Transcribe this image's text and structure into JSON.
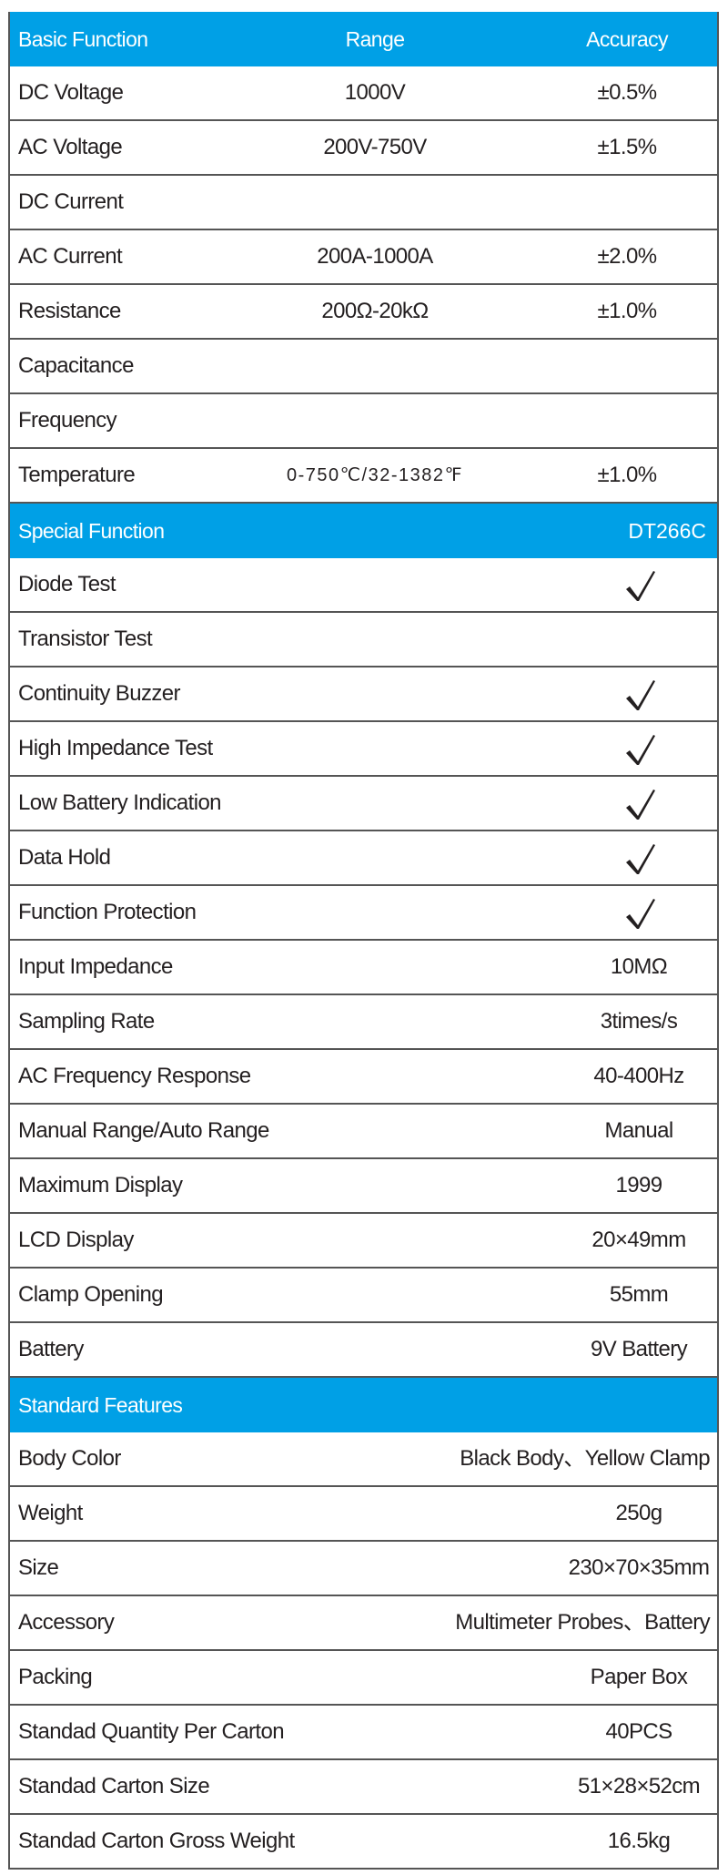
{
  "theme": {
    "header_color": "#00a0e6",
    "border_color": "#555555",
    "text_color": "#231f20"
  },
  "basic": {
    "header": {
      "label": "Basic Function",
      "range": "Range",
      "accuracy": "Accuracy"
    },
    "rows": [
      {
        "label": "DC Voltage",
        "range": "1000V",
        "accuracy": "±0.5%"
      },
      {
        "label": "AC Voltage",
        "range": "200V-750V",
        "accuracy": "±1.5%"
      },
      {
        "label": "DC Current",
        "range": "",
        "accuracy": ""
      },
      {
        "label": "AC Current",
        "range": "200A-1000A",
        "accuracy": "±2.0%"
      },
      {
        "label": "Resistance",
        "range": "200Ω-20kΩ",
        "accuracy": "±1.0%"
      },
      {
        "label": "Capacitance",
        "range": "",
        "accuracy": ""
      },
      {
        "label": "Frequency",
        "range": "",
        "accuracy": ""
      },
      {
        "label": "Temperature",
        "range": "0-750℃/32-1382℉",
        "accuracy": "±1.0%"
      }
    ]
  },
  "special": {
    "header": {
      "label": "Special Function",
      "model": "DT266C"
    },
    "rows": [
      {
        "label": "Diode Test",
        "check": true
      },
      {
        "label": "Transistor Test",
        "check": false
      },
      {
        "label": "Continuity Buzzer",
        "check": true
      },
      {
        "label": "High Impedance Test",
        "check": true
      },
      {
        "label": "Low Battery Indication",
        "check": true
      },
      {
        "label": "Data Hold",
        "check": true
      },
      {
        "label": "Function Protection",
        "check": true
      },
      {
        "label": "Input Impedance",
        "value": "10MΩ"
      },
      {
        "label": "Sampling Rate",
        "value": "3times/s"
      },
      {
        "label": "AC Frequency Response",
        "value": "40-400Hz"
      },
      {
        "label": "Manual Range/Auto Range",
        "value": "Manual"
      },
      {
        "label": "Maximum Display",
        "value": "1999"
      },
      {
        "label": "LCD Display",
        "value": "20×49mm"
      },
      {
        "label": "Clamp Opening",
        "value": "55mm"
      },
      {
        "label": "Battery",
        "value": "9V Battery"
      }
    ]
  },
  "standard": {
    "header": {
      "label": "Standard  Features"
    },
    "rows": [
      {
        "label": "Body Color",
        "value": "Black Body、Yellow Clamp",
        "wide": true
      },
      {
        "label": "Weight",
        "value": "250g"
      },
      {
        "label": "Size",
        "value": "230×70×35mm"
      },
      {
        "label": "Accessory",
        "value": "Multimeter Probes、Battery",
        "wide": true
      },
      {
        "label": "Packing",
        "value": "Paper Box"
      },
      {
        "label": "Standad Quantity Per Carton",
        "value": "40PCS"
      },
      {
        "label": "Standad Carton Size",
        "value": "51×28×52cm"
      },
      {
        "label": "Standad Carton Gross Weight",
        "value": "16.5kg"
      }
    ]
  }
}
